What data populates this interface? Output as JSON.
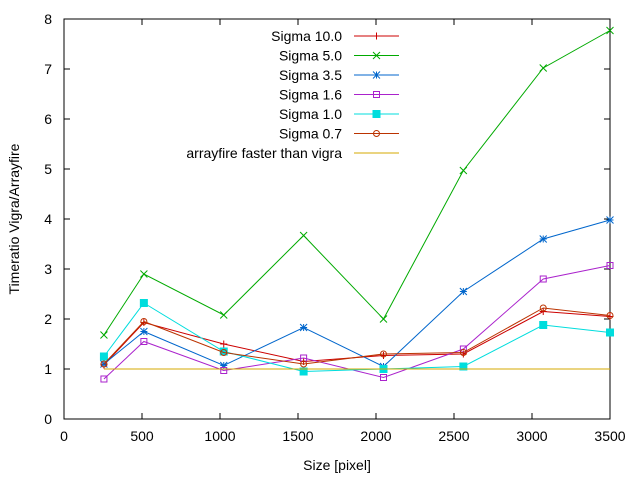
{
  "chart_data": {
    "type": "line",
    "xlabel": "Size [pixel]",
    "ylabel": "Timeratio Vigra/Arrayfire",
    "xlim": [
      0,
      3500
    ],
    "ylim": [
      0,
      8
    ],
    "xticks": [
      0,
      500,
      1000,
      1500,
      2000,
      2500,
      3000,
      3500
    ],
    "yticks": [
      0,
      1,
      2,
      3,
      4,
      5,
      6,
      7,
      8
    ],
    "grid": false,
    "legend_position": "top-right",
    "series": [
      {
        "name": "Sigma 10.0",
        "color": "#cc0000",
        "marker": "plus",
        "x": [
          256,
          512,
          1024,
          1536,
          2048,
          2560,
          3072,
          3500
        ],
        "y": [
          1.08,
          1.93,
          1.5,
          1.15,
          1.27,
          1.3,
          2.15,
          2.05
        ]
      },
      {
        "name": "Sigma 5.0",
        "color": "#00aa00",
        "marker": "cross",
        "x": [
          256,
          512,
          1024,
          1536,
          2048,
          2560,
          3072,
          3500
        ],
        "y": [
          1.68,
          2.9,
          2.08,
          3.67,
          2.0,
          4.97,
          7.02,
          7.77
        ]
      },
      {
        "name": "Sigma 3.5",
        "color": "#0066cc",
        "marker": "star",
        "x": [
          256,
          512,
          1024,
          1536,
          2048,
          2560,
          3072,
          3500
        ],
        "y": [
          1.1,
          1.75,
          1.07,
          1.83,
          1.05,
          2.55,
          3.6,
          3.98
        ]
      },
      {
        "name": "Sigma 1.6",
        "color": "#aa22cc",
        "marker": "square-open",
        "x": [
          256,
          512,
          1024,
          1536,
          2048,
          2560,
          3072,
          3500
        ],
        "y": [
          0.8,
          1.55,
          0.97,
          1.22,
          0.83,
          1.4,
          2.8,
          3.07
        ]
      },
      {
        "name": "Sigma 1.0",
        "color": "#00dddd",
        "marker": "square-filled",
        "x": [
          256,
          512,
          1024,
          1536,
          2048,
          2560,
          3072,
          3500
        ],
        "y": [
          1.25,
          2.32,
          1.35,
          0.95,
          1.0,
          1.05,
          1.88,
          1.73
        ]
      },
      {
        "name": "Sigma 0.7",
        "color": "#bb3300",
        "marker": "circle-open",
        "x": [
          256,
          512,
          1024,
          1536,
          2048,
          2560,
          3072,
          3500
        ],
        "y": [
          1.1,
          1.95,
          1.33,
          1.1,
          1.3,
          1.33,
          2.22,
          2.07
        ]
      },
      {
        "name": "arrayfire faster than vigra",
        "color": "#d4aa00",
        "marker": "none",
        "x": [
          256,
          3500
        ],
        "y": [
          1.0,
          1.0
        ]
      }
    ]
  }
}
